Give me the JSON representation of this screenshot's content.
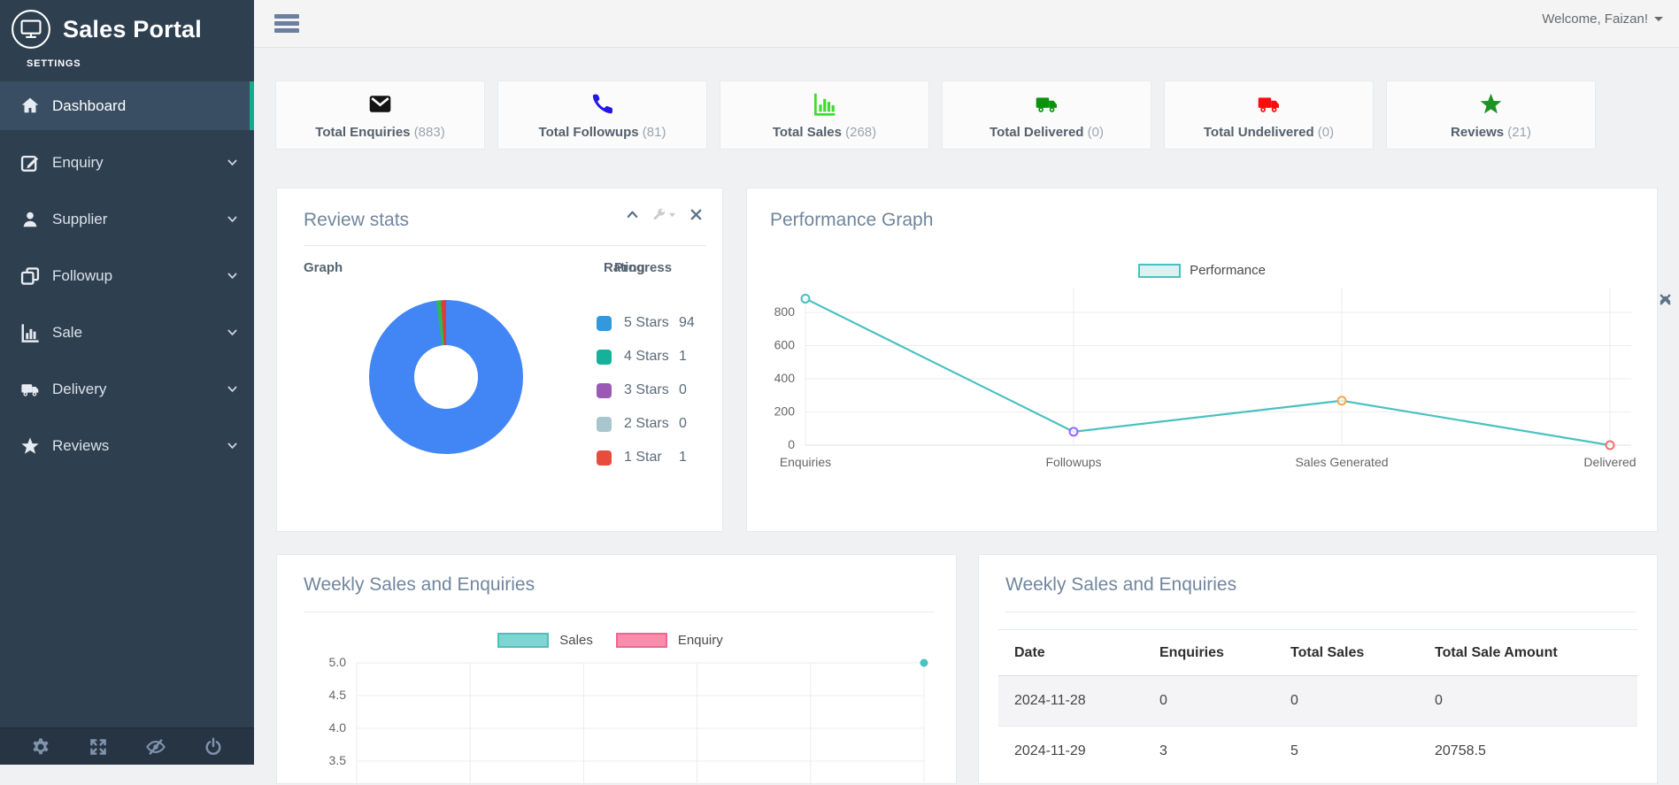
{
  "topbar": {
    "welcome": "Welcome, Faizan!"
  },
  "sidebar": {
    "title": "Sales Portal",
    "section": "SETTINGS",
    "items": [
      {
        "label": "Dashboard"
      },
      {
        "label": "Enquiry"
      },
      {
        "label": "Supplier"
      },
      {
        "label": "Followup"
      },
      {
        "label": "Sale"
      },
      {
        "label": "Delivery"
      },
      {
        "label": "Reviews"
      }
    ]
  },
  "cards": [
    {
      "label": "Total Enquiries",
      "count": "(883)",
      "icon": "envelope-icon",
      "icon_color": "#141414"
    },
    {
      "label": "Total Followups",
      "count": "(81)",
      "icon": "phone-icon",
      "icon_color": "#2317e4"
    },
    {
      "label": "Total Sales",
      "count": "(268)",
      "icon": "bar-chart-icon",
      "icon_color": "#3bdd2e"
    },
    {
      "label": "Total Delivered",
      "count": "(0)",
      "icon": "truck-icon",
      "icon_color": "#0c930c"
    },
    {
      "label": "Total Undelivered",
      "count": "(0)",
      "icon": "truck-icon",
      "icon_color": "#fa0d0d"
    },
    {
      "label": "Reviews",
      "count": "(21)",
      "icon": "star-icon",
      "icon_color": "#1d9323"
    }
  ],
  "review_stats": {
    "title": "Review stats",
    "col_graph": "Graph",
    "col_rating": "Rating",
    "col_progress": "Progress",
    "legend": [
      {
        "label": "5 Stars",
        "value": "94",
        "color": "#3498db"
      },
      {
        "label": "4 Stars",
        "value": "1",
        "color": "#14b29a"
      },
      {
        "label": "3 Stars",
        "value": "0",
        "color": "#9b59b6"
      },
      {
        "label": "2 Stars",
        "value": "0",
        "color": "#a9c5ce"
      },
      {
        "label": "1 Star",
        "value": "1",
        "color": "#e84c3d"
      }
    ]
  },
  "performance": {
    "title": "Performance Graph",
    "legend_label": "Performance",
    "yticks": [
      "800",
      "600",
      "400",
      "200",
      "0"
    ],
    "xlabels": [
      "Enquiries",
      "Followups",
      "Sales Generated",
      "Delivered"
    ]
  },
  "weekly_chart": {
    "title": "Weekly Sales and Enquiries",
    "legend": [
      {
        "label": "Sales",
        "fill": "#7fd5cf",
        "border": "#4bc0c0"
      },
      {
        "label": "Enquiry",
        "fill": "#f78fac",
        "border": "#ef6593"
      }
    ],
    "yticks": [
      "5.0",
      "4.5",
      "4.0",
      "3.5"
    ]
  },
  "weekly_table": {
    "title": "Weekly Sales and Enquiries",
    "columns": [
      "Date",
      "Enquiries",
      "Total Sales",
      "Total Sale Amount"
    ],
    "rows": [
      [
        "2024-11-28",
        "0",
        "0",
        "0"
      ],
      [
        "2024-11-29",
        "3",
        "5",
        "20758.5"
      ]
    ]
  },
  "chart_data": [
    {
      "type": "pie",
      "title": "Review stats",
      "labels": [
        "5 Stars",
        "4 Stars",
        "3 Stars",
        "2 Stars",
        "1 Star"
      ],
      "values": [
        94,
        1,
        0,
        0,
        1
      ],
      "colors": [
        "#4285f4",
        "#2eb85c",
        "#9b59b6",
        "#a9c5ce",
        "#e53935"
      ],
      "donut": true,
      "legend_position": "right"
    },
    {
      "type": "line",
      "title": "Performance Graph",
      "categories": [
        "Enquiries",
        "Followups",
        "Sales Generated",
        "Delivered"
      ],
      "series": [
        {
          "name": "Performance",
          "values": [
            883,
            81,
            268,
            0
          ]
        }
      ],
      "ylim": [
        0,
        800
      ],
      "yticks": [
        0,
        200,
        400,
        600,
        800
      ],
      "grid": true,
      "legend_position": "top",
      "line_color": "#4bc0c0",
      "point_colors": [
        "#4bc0c0",
        "#9966ff",
        "#f5a54a",
        "#f56c6c"
      ]
    },
    {
      "type": "line",
      "title": "Weekly Sales and Enquiries",
      "series": [
        {
          "name": "Sales",
          "color": "#4bc0c0",
          "visible_points": [
            {
              "x_index": 5,
              "y": 5.0
            }
          ]
        },
        {
          "name": "Enquiry",
          "color": "#ef6593",
          "visible_points": []
        }
      ],
      "yticks_visible": [
        5.0,
        4.5,
        4.0,
        3.5
      ],
      "grid": true,
      "legend_position": "top",
      "note": "chart truncated at viewport bottom"
    }
  ]
}
